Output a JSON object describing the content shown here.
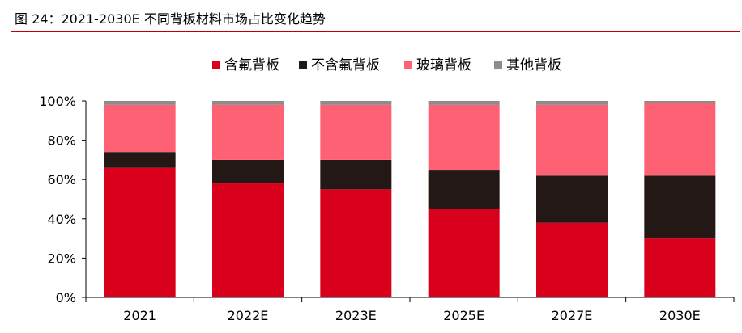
{
  "header": {
    "title": "图 24：2021-2030E 不同背板材料市场占比变化趋势"
  },
  "chart_data": {
    "type": "bar",
    "stacked": true,
    "categories": [
      "2021",
      "2022E",
      "2023E",
      "2025E",
      "2027E",
      "2030E"
    ],
    "series": [
      {
        "name": "含氟背板",
        "color": "#d9001b",
        "values": [
          66,
          58,
          55,
          45,
          38,
          30
        ]
      },
      {
        "name": "不含氟背板",
        "color": "#231815",
        "values": [
          8,
          12,
          15,
          20,
          24,
          32
        ]
      },
      {
        "name": "玻璃背板",
        "color": "#ff6174",
        "values": [
          24,
          28,
          28,
          33,
          36,
          37
        ]
      },
      {
        "name": "其他背板",
        "color": "#8c8c8c",
        "values": [
          2,
          2,
          2,
          2,
          2,
          1
        ]
      }
    ],
    "ylim": [
      0,
      100
    ],
    "yticks": [
      "0%",
      "20%",
      "40%",
      "60%",
      "80%",
      "100%"
    ],
    "legend_position": "top",
    "grid": false
  }
}
